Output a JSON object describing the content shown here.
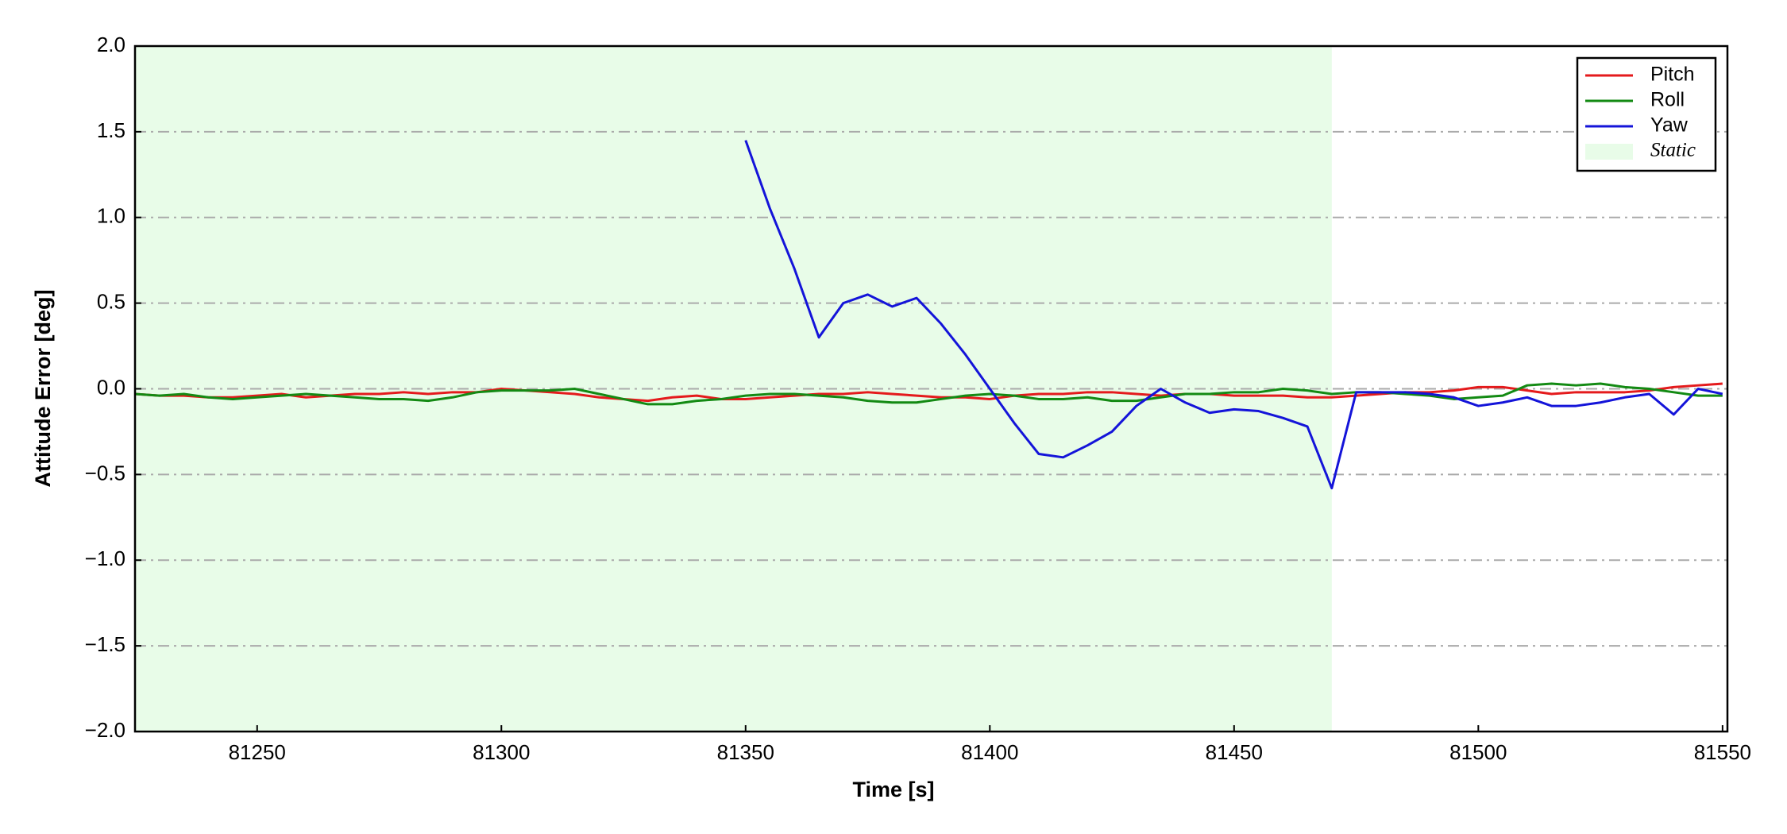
{
  "chart_data": {
    "type": "line",
    "xlabel": "Time [s]",
    "ylabel": "Attitude Error [deg]",
    "x": [
      81225,
      81230,
      81235,
      81240,
      81245,
      81250,
      81255,
      81260,
      81265,
      81270,
      81275,
      81280,
      81285,
      81290,
      81295,
      81300,
      81305,
      81310,
      81315,
      81320,
      81325,
      81330,
      81335,
      81340,
      81345,
      81350,
      81355,
      81360,
      81365,
      81370,
      81375,
      81380,
      81385,
      81390,
      81395,
      81400,
      81405,
      81410,
      81415,
      81420,
      81425,
      81430,
      81435,
      81440,
      81445,
      81450,
      81455,
      81460,
      81465,
      81470,
      81475,
      81480,
      81485,
      81490,
      81495,
      81500,
      81505,
      81510,
      81515,
      81520,
      81525,
      81530,
      81535,
      81540,
      81545,
      81550
    ],
    "series": [
      {
        "name": "Pitch",
        "color": "#e41a1c",
        "values": [
          -0.03,
          -0.04,
          -0.04,
          -0.05,
          -0.05,
          -0.04,
          -0.03,
          -0.05,
          -0.04,
          -0.03,
          -0.03,
          -0.02,
          -0.03,
          -0.02,
          -0.02,
          0.0,
          -0.01,
          -0.02,
          -0.03,
          -0.05,
          -0.06,
          -0.07,
          -0.05,
          -0.04,
          -0.06,
          -0.06,
          -0.05,
          -0.04,
          -0.03,
          -0.03,
          -0.02,
          -0.03,
          -0.04,
          -0.05,
          -0.05,
          -0.06,
          -0.04,
          -0.03,
          -0.03,
          -0.02,
          -0.02,
          -0.03,
          -0.04,
          -0.03,
          -0.03,
          -0.04,
          -0.04,
          -0.04,
          -0.05,
          -0.05,
          -0.04,
          -0.03,
          -0.02,
          -0.02,
          -0.01,
          0.01,
          0.01,
          -0.01,
          -0.03,
          -0.02,
          -0.02,
          -0.02,
          -0.01,
          0.01,
          0.02,
          0.03
        ]
      },
      {
        "name": "Roll",
        "color": "#138a13",
        "values": [
          -0.03,
          -0.04,
          -0.03,
          -0.05,
          -0.06,
          -0.05,
          -0.04,
          -0.03,
          -0.04,
          -0.05,
          -0.06,
          -0.06,
          -0.07,
          -0.05,
          -0.02,
          -0.01,
          -0.01,
          -0.01,
          0.0,
          -0.03,
          -0.06,
          -0.09,
          -0.09,
          -0.07,
          -0.06,
          -0.04,
          -0.03,
          -0.03,
          -0.04,
          -0.05,
          -0.07,
          -0.08,
          -0.08,
          -0.06,
          -0.04,
          -0.03,
          -0.04,
          -0.06,
          -0.06,
          -0.05,
          -0.07,
          -0.07,
          -0.05,
          -0.03,
          -0.03,
          -0.02,
          -0.02,
          0.0,
          -0.01,
          -0.03,
          -0.02,
          -0.02,
          -0.03,
          -0.04,
          -0.06,
          -0.05,
          -0.04,
          0.02,
          0.03,
          0.02,
          0.03,
          0.01,
          0.0,
          -0.02,
          -0.04,
          -0.04
        ]
      },
      {
        "name": "Yaw",
        "color": "#1414d9",
        "values": [
          null,
          null,
          null,
          null,
          null,
          null,
          null,
          null,
          null,
          null,
          null,
          null,
          null,
          null,
          null,
          null,
          null,
          null,
          null,
          null,
          null,
          null,
          null,
          null,
          null,
          1.45,
          1.05,
          0.7,
          0.3,
          0.5,
          0.55,
          0.48,
          0.53,
          0.38,
          0.2,
          0.0,
          -0.2,
          -0.38,
          -0.4,
          -0.33,
          -0.25,
          -0.1,
          0.0,
          -0.08,
          -0.14,
          -0.12,
          -0.13,
          -0.17,
          -0.22,
          -0.58,
          -0.02,
          -0.02,
          -0.02,
          -0.03,
          -0.05,
          -0.1,
          -0.08,
          -0.05,
          -0.1,
          -0.1,
          -0.08,
          -0.05,
          -0.03,
          -0.15,
          0.0,
          -0.03
        ]
      }
    ],
    "shaded_region": {
      "name": "Static",
      "x": [
        81225,
        81470
      ],
      "color": "#e8fce8"
    },
    "xlim": [
      81225,
      81551
    ],
    "xticks": [
      81250,
      81300,
      81350,
      81400,
      81450,
      81500,
      81550
    ],
    "ylim": [
      -2.0,
      2.0
    ],
    "yticks": [
      {
        "value": -2.0,
        "label": "−2.0"
      },
      {
        "value": -1.5,
        "label": "−1.5"
      },
      {
        "value": -1.0,
        "label": "−1.0"
      },
      {
        "value": -0.5,
        "label": "−0.5"
      },
      {
        "value": 0.0,
        "label": "0.0"
      },
      {
        "value": 0.5,
        "label": "0.5"
      },
      {
        "value": 1.0,
        "label": "1.0"
      },
      {
        "value": 1.5,
        "label": "1.5"
      },
      {
        "value": 2.0,
        "label": "2.0"
      }
    ],
    "grid": "y",
    "legend": "upper right"
  }
}
